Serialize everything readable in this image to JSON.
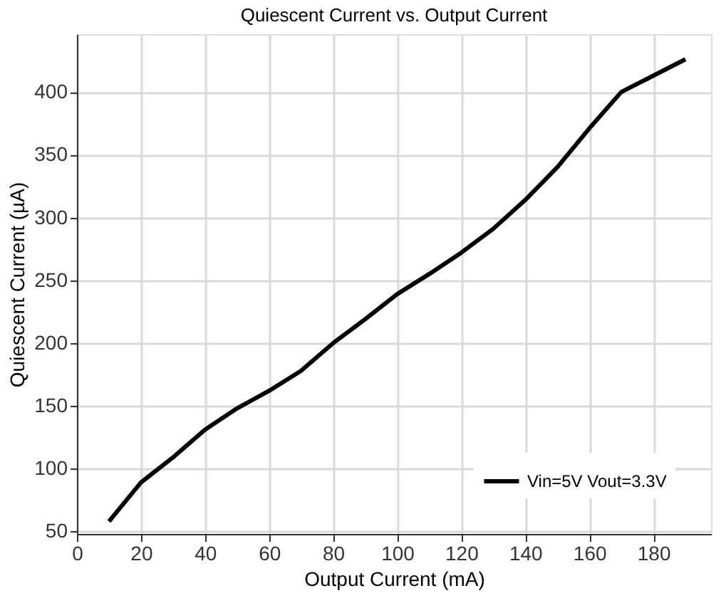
{
  "chart_data": {
    "type": "line",
    "title": "Quiescent Current vs. Output Current",
    "xlabel": "Output Current (mA)",
    "ylabel": "Quiescent Current (µA)",
    "x": [
      10,
      20,
      30,
      40,
      50,
      60,
      70,
      80,
      90,
      100,
      110,
      120,
      130,
      140,
      150,
      160,
      170,
      180,
      190
    ],
    "series": [
      {
        "name": "Vin=5V Vout=3.3V",
        "color": "#000000",
        "values": [
          58,
          89,
          109,
          131,
          148,
          162,
          178,
          200,
          219,
          239,
          255,
          272,
          291,
          314,
          340,
          371,
          400,
          413,
          426
        ]
      }
    ],
    "xlim": [
      0,
      198
    ],
    "xticks": [
      0,
      20,
      40,
      60,
      80,
      100,
      120,
      140,
      160,
      180
    ],
    "ylim": [
      48,
      446
    ],
    "yticks": [
      50,
      100,
      150,
      200,
      250,
      300,
      350,
      400
    ],
    "grid": true,
    "legend": "bottom right",
    "marker": "none",
    "line_style": "solid"
  }
}
